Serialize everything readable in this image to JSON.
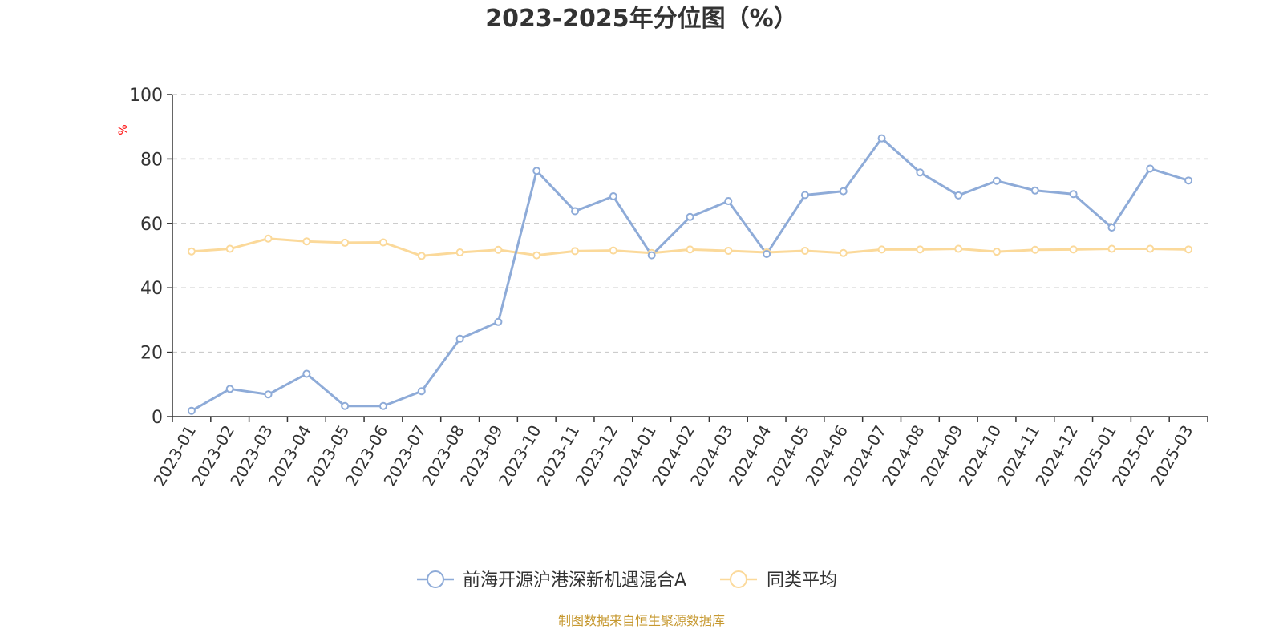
{
  "chart_data": {
    "type": "line",
    "title": "2023-2025年分位图（%）",
    "ylabel": "%",
    "xlabel": "",
    "ylim": [
      0,
      100
    ],
    "yticks": [
      0,
      20,
      40,
      60,
      80,
      100
    ],
    "grid": "horizontal dashed",
    "legend_position": "bottom",
    "x": [
      "2023-01",
      "2023-02",
      "2023-03",
      "2023-04",
      "2023-05",
      "2023-06",
      "2023-07",
      "2023-08",
      "2023-09",
      "2023-10",
      "2023-11",
      "2023-12",
      "2024-01",
      "2024-02",
      "2024-03",
      "2024-04",
      "2024-05",
      "2024-06",
      "2024-07",
      "2024-08",
      "2024-09",
      "2024-10",
      "2024-11",
      "2024-12",
      "2025-01",
      "2025-02",
      "2025-03"
    ],
    "series": [
      {
        "name": "前海开源沪港深新机遇混合A",
        "color": "#8eabd8",
        "values": [
          1.8,
          8.6,
          6.9,
          13.3,
          3.3,
          3.3,
          7.9,
          24.2,
          29.4,
          76.3,
          63.8,
          68.4,
          50.1,
          62.0,
          66.9,
          50.5,
          68.8,
          70.0,
          86.4,
          75.8,
          68.7,
          73.2,
          70.2,
          69.1,
          58.7,
          77.0,
          73.3
        ]
      },
      {
        "name": "同类平均",
        "color": "#fbd99a",
        "values": [
          51.3,
          52.1,
          55.3,
          54.4,
          54.0,
          54.1,
          49.9,
          51.0,
          51.8,
          50.1,
          51.4,
          51.6,
          50.8,
          51.9,
          51.5,
          51.0,
          51.5,
          50.8,
          51.9,
          51.9,
          52.1,
          51.2,
          51.8,
          51.9,
          52.1,
          52.1,
          51.9
        ]
      }
    ],
    "source": "制图数据来自恒生聚源数据库",
    "axis_color": "#333333",
    "grid_color": "#cccccc",
    "unit_color": "#ff0000",
    "source_color": "#c6982f"
  }
}
